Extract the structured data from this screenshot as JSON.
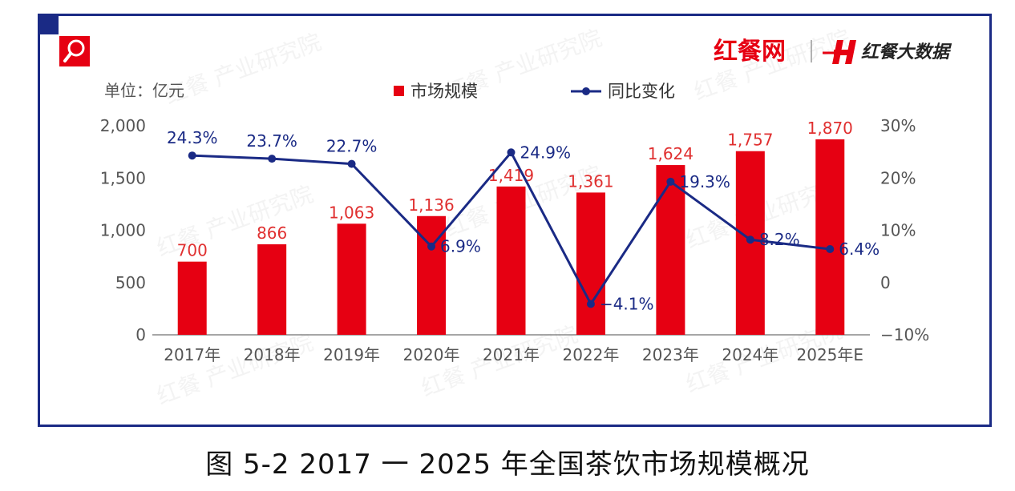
{
  "brand": {
    "logo_text": "红餐网",
    "sub_brand": "红餐大数据",
    "watermark": "红餐 产业研究院"
  },
  "unit_label": "单位：亿元",
  "caption": "图 5-2     2017 一 2025 年全国茶饮市场规模概况",
  "colors": {
    "bar": "#e60012",
    "line": "#1a2a85",
    "frame": "#1a2a85",
    "bar_label": "#e03030"
  },
  "chart_data": {
    "type": "bar",
    "title": "",
    "categories": [
      "2017年",
      "2018年",
      "2019年",
      "2020年",
      "2021年",
      "2022年",
      "2023年",
      "2024年",
      "2025年E"
    ],
    "series": [
      {
        "name": "市场规模",
        "type": "bar",
        "axis": "left",
        "values": [
          700,
          866,
          1063,
          1136,
          1419,
          1361,
          1624,
          1757,
          1870
        ],
        "labels": [
          "700",
          "866",
          "1,063",
          "1,136",
          "1,419",
          "1,361",
          "1,624",
          "1,757",
          "1,870"
        ]
      },
      {
        "name": "同比变化",
        "type": "line",
        "axis": "right",
        "values": [
          24.3,
          23.7,
          22.7,
          6.9,
          24.9,
          -4.1,
          19.3,
          8.2,
          6.4
        ],
        "labels": [
          "24.3%",
          "23.7%",
          "22.7%",
          "6.9%",
          "24.9%",
          "−4.1%",
          "19.3%",
          "8.2%",
          "6.4%"
        ]
      }
    ],
    "y_left": {
      "range": [
        0,
        2000
      ],
      "ticks": [
        0,
        500,
        1000,
        1500,
        2000
      ],
      "tick_labels": [
        "0",
        "500",
        "1,000",
        "1,500",
        "2,000"
      ]
    },
    "y_right": {
      "range": [
        -10,
        30
      ],
      "ticks": [
        -10,
        0,
        10,
        20,
        30
      ],
      "tick_labels": [
        "−10%",
        "0",
        "10%",
        "20%",
        "30%"
      ]
    },
    "legend": {
      "position": "top-center"
    },
    "grid": false
  }
}
